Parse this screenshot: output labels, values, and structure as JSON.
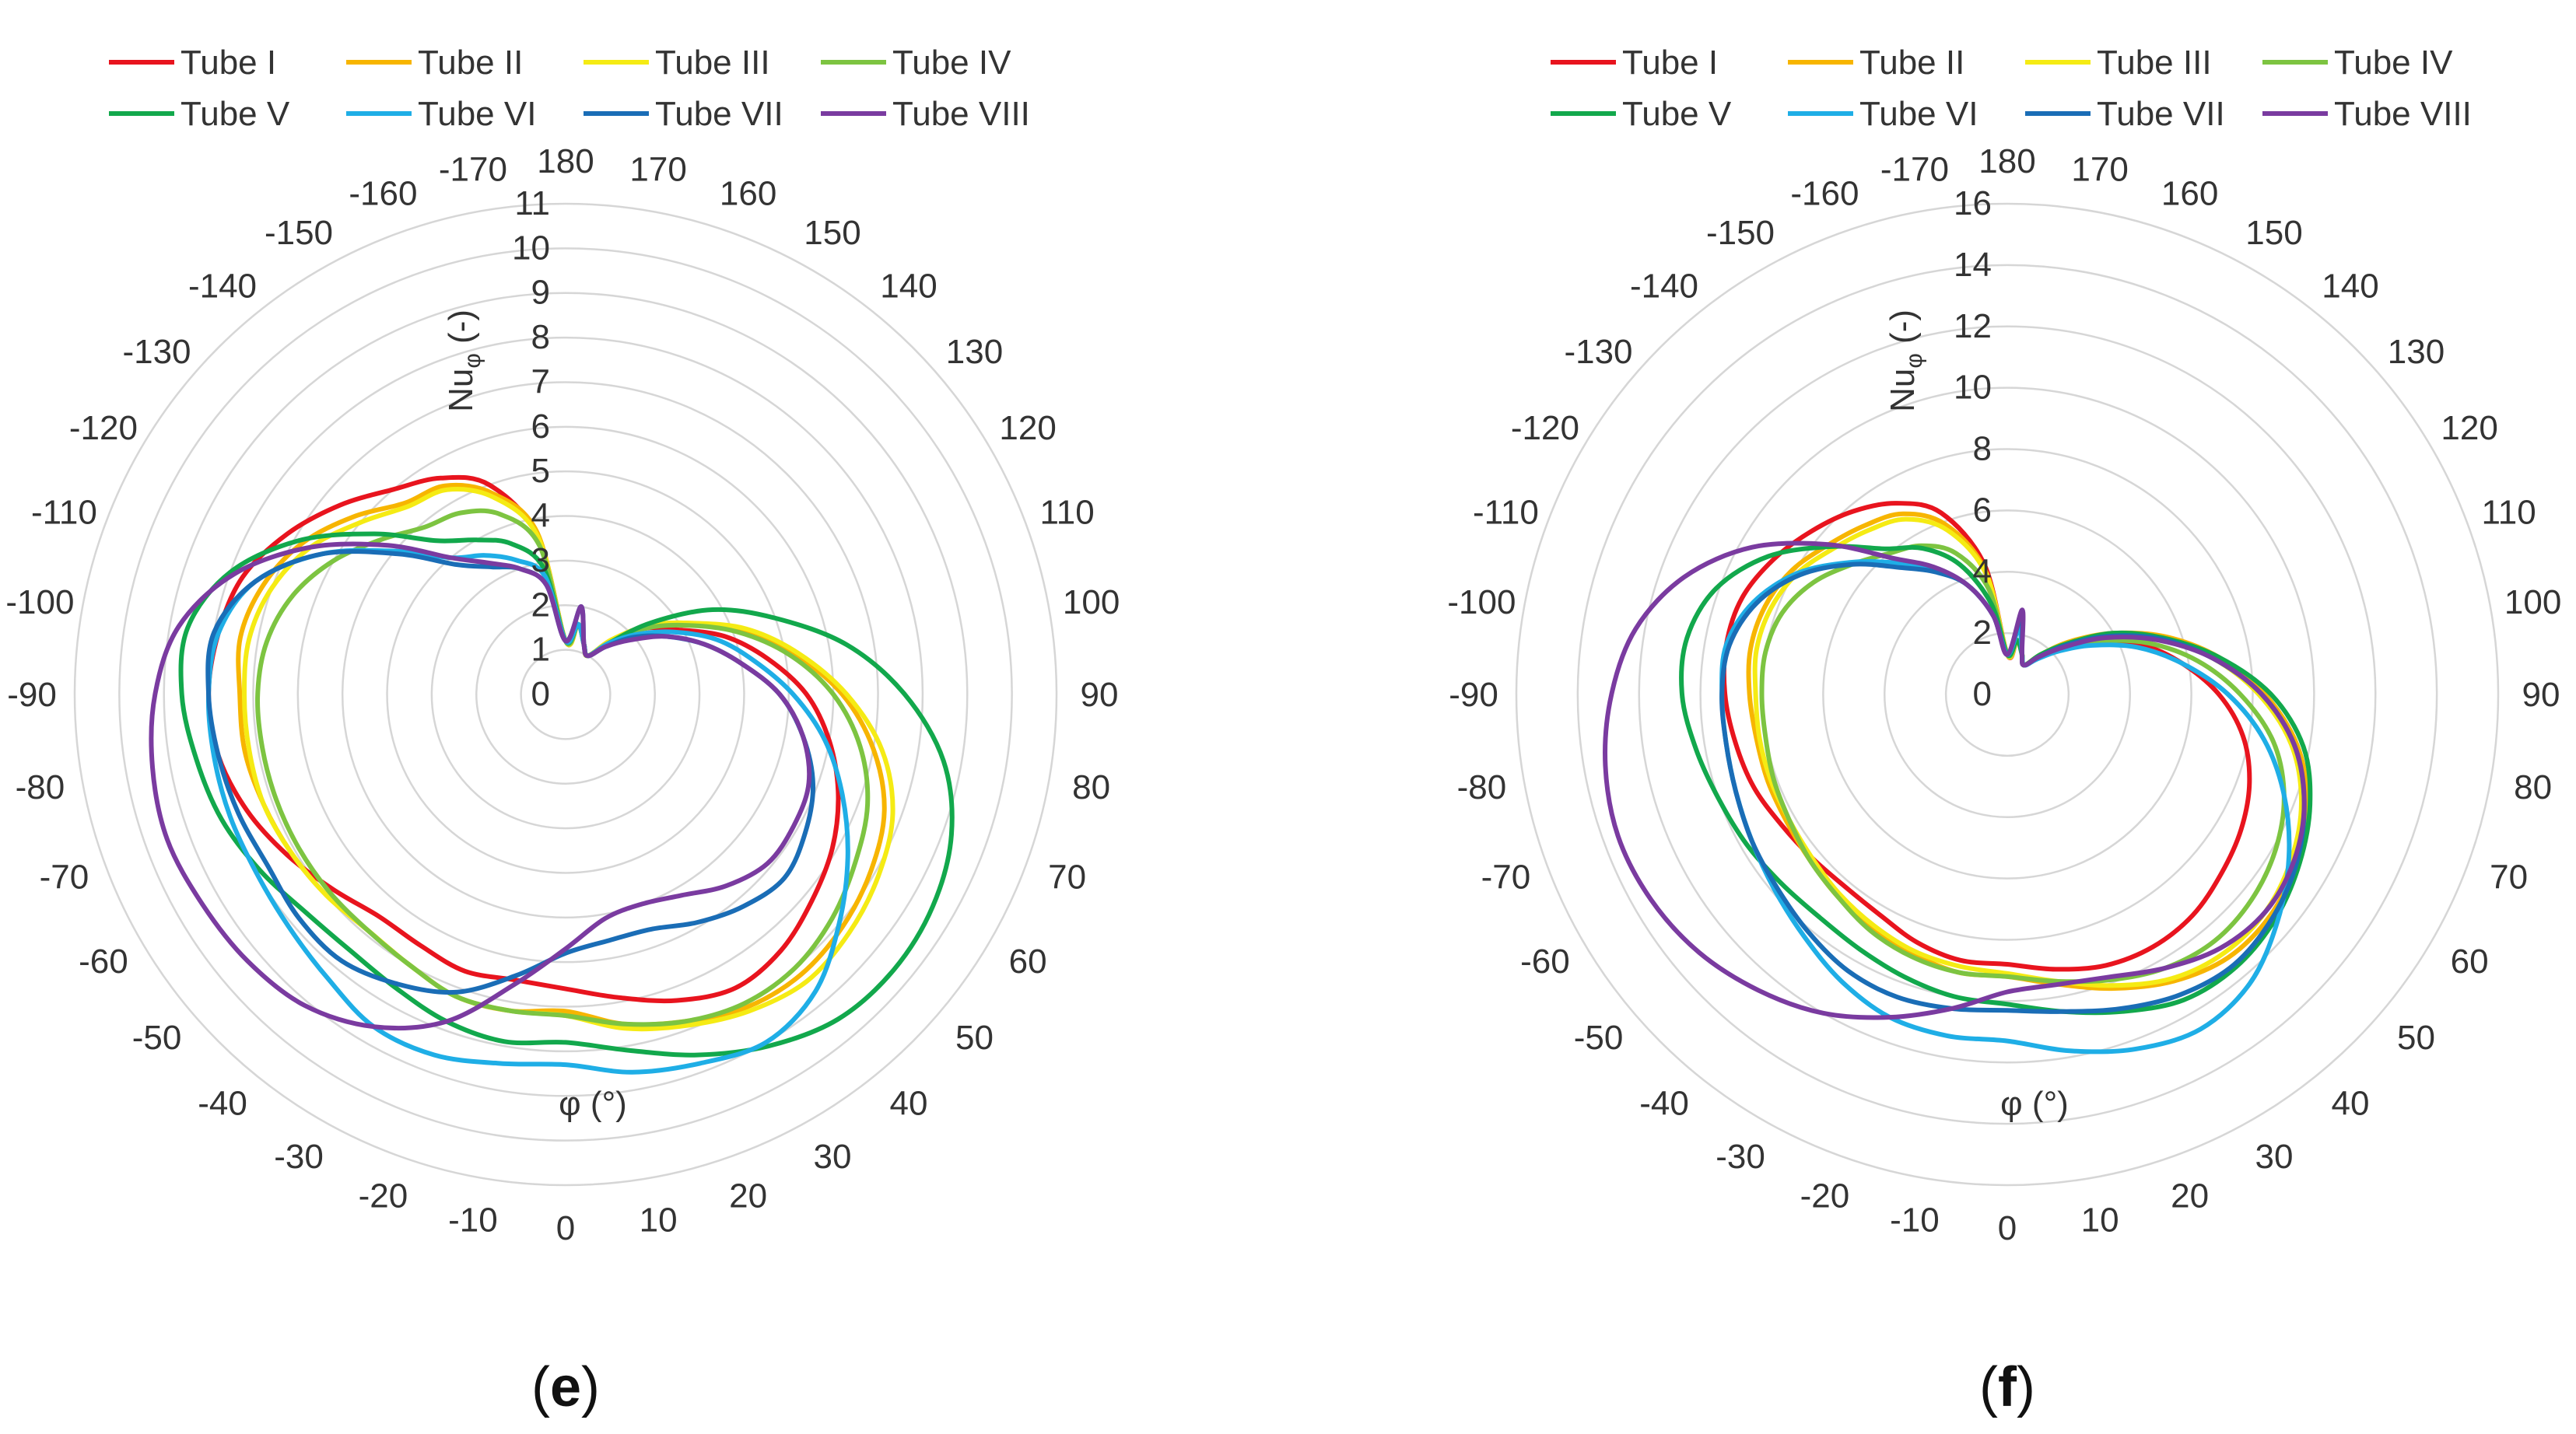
{
  "figure": {
    "legend_entries": [
      "Tube I",
      "Tube II",
      "Tube III",
      "Tube IV",
      "Tube V",
      "Tube VI",
      "Tube VII",
      "Tube VIII"
    ],
    "series_colors": [
      "#e8141e",
      "#f7b500",
      "#f5eb14",
      "#7dc441",
      "#12a84c",
      "#1faee6",
      "#1a6db6",
      "#7a3ba0"
    ]
  },
  "chart_data": [
    {
      "type": "polar-line",
      "panel_label": "(e)",
      "panel_letter": "e",
      "radial_axis_label": "Nu",
      "radial_axis_subscript": "φ",
      "radial_axis_unit": "(-)",
      "angular_axis_label": "φ (°)",
      "r_range": [
        0,
        11
      ],
      "r_ticks": [
        0,
        1,
        2,
        3,
        4,
        5,
        6,
        7,
        8,
        9,
        10,
        11
      ],
      "angle_ticks": [
        0,
        10,
        20,
        30,
        40,
        50,
        60,
        70,
        80,
        90,
        100,
        110,
        120,
        130,
        140,
        150,
        160,
        170,
        180,
        -170,
        -160,
        -150,
        -140,
        -130,
        -120,
        -110,
        -100,
        -90,
        -80,
        -70,
        -60,
        -50,
        -40,
        -30,
        -20,
        -10
      ],
      "angles_deg": [
        -180,
        -170,
        -160,
        -150,
        -140,
        -130,
        -120,
        -110,
        -100,
        -90,
        -80,
        -70,
        -60,
        -50,
        -40,
        -30,
        -20,
        -10,
        0,
        10,
        20,
        30,
        40,
        50,
        60,
        70,
        80,
        90,
        100,
        110,
        120,
        130,
        140,
        150,
        160,
        170,
        180
      ],
      "series": [
        {
          "name": "Tube I",
          "values": [
            1.2,
            3.6,
            5.0,
            5.6,
            6.0,
            6.6,
            7.2,
            7.7,
            7.9,
            8.0,
            7.9,
            7.6,
            7.2,
            6.8,
            6.5,
            6.5,
            6.6,
            6.5,
            6.6,
            6.9,
            7.3,
            7.6,
            7.5,
            7.2,
            6.9,
            6.5,
            6.0,
            5.4,
            4.6,
            3.8,
            2.9,
            2.3,
            1.5,
            1.0,
            1.2,
            1.6,
            1.2
          ]
        },
        {
          "name": "Tube II",
          "values": [
            1.2,
            3.7,
            4.8,
            5.4,
            5.6,
            6.2,
            6.8,
            7.2,
            7.4,
            7.3,
            7.3,
            7.2,
            7.1,
            7.0,
            6.9,
            7.0,
            7.2,
            7.2,
            7.1,
            7.5,
            7.8,
            8.1,
            8.2,
            8.1,
            7.9,
            7.6,
            7.0,
            6.2,
            5.2,
            4.2,
            3.2,
            2.4,
            1.6,
            1.0,
            1.2,
            1.6,
            1.2
          ]
        },
        {
          "name": "Tube III",
          "values": [
            1.2,
            3.6,
            4.7,
            5.3,
            5.5,
            6.0,
            6.6,
            7.0,
            7.2,
            7.2,
            7.2,
            7.2,
            7.1,
            7.0,
            6.9,
            7.0,
            7.2,
            7.2,
            7.2,
            7.6,
            7.9,
            8.2,
            8.4,
            8.3,
            8.1,
            7.8,
            7.2,
            6.3,
            5.3,
            4.3,
            3.2,
            2.4,
            1.6,
            1.0,
            1.2,
            1.6,
            1.2
          ]
        },
        {
          "name": "Tube IV",
          "values": [
            1.2,
            3.4,
            4.3,
            4.7,
            4.9,
            5.4,
            6.0,
            6.5,
            6.8,
            6.9,
            6.9,
            6.9,
            6.9,
            6.9,
            6.9,
            7.0,
            7.2,
            7.2,
            7.2,
            7.5,
            7.8,
            8.0,
            8.0,
            7.8,
            7.5,
            7.2,
            6.7,
            6.0,
            5.1,
            4.1,
            3.1,
            2.3,
            1.5,
            1.0,
            1.2,
            1.6,
            1.2
          ]
        },
        {
          "name": "Tube V",
          "values": [
            1.2,
            2.9,
            3.6,
            4.0,
            4.5,
            5.6,
            6.9,
            8.0,
            8.6,
            8.6,
            8.4,
            8.2,
            7.9,
            7.6,
            7.5,
            7.6,
            7.8,
            7.9,
            7.8,
            8.1,
            8.6,
            9.1,
            9.5,
            9.6,
            9.5,
            9.2,
            8.6,
            7.6,
            6.4,
            5.0,
            3.8,
            2.5,
            1.5,
            1.0,
            1.2,
            1.6,
            1.2
          ]
        },
        {
          "name": "Tube VI",
          "values": [
            1.2,
            2.7,
            3.2,
            3.6,
            4.0,
            5.0,
            6.3,
            7.4,
            7.9,
            8.0,
            8.0,
            8.0,
            8.0,
            8.1,
            8.3,
            8.6,
            8.6,
            8.4,
            8.3,
            8.6,
            8.8,
            9.0,
            8.7,
            8.0,
            7.3,
            6.6,
            5.9,
            5.1,
            4.3,
            3.6,
            2.8,
            2.1,
            1.5,
            1.0,
            1.2,
            1.6,
            1.2
          ]
        },
        {
          "name": "Tube VII",
          "values": [
            1.2,
            2.5,
            3.0,
            3.3,
            3.8,
            4.9,
            6.3,
            7.4,
            8.0,
            8.0,
            7.9,
            7.8,
            7.7,
            7.8,
            7.8,
            7.5,
            7.1,
            6.4,
            5.8,
            5.6,
            5.6,
            5.9,
            6.2,
            6.4,
            6.2,
            5.9,
            5.4,
            4.8,
            4.0,
            3.3,
            2.6,
            2.0,
            1.4,
            1.0,
            1.2,
            2.0,
            1.2
          ]
        },
        {
          "name": "Tube VIII",
          "values": [
            1.2,
            2.5,
            3.0,
            3.4,
            4.0,
            5.2,
            6.6,
            7.9,
            8.8,
            9.2,
            9.4,
            9.5,
            9.4,
            9.3,
            9.1,
            8.6,
            7.8,
            6.6,
            5.7,
            5.1,
            5.0,
            5.2,
            5.6,
            5.9,
            5.9,
            5.8,
            5.4,
            4.8,
            4.0,
            3.3,
            2.6,
            1.9,
            1.4,
            1.0,
            1.2,
            2.0,
            1.2
          ]
        }
      ]
    },
    {
      "type": "polar-line",
      "panel_label": "(f)",
      "panel_letter": "f",
      "radial_axis_label": "Nu",
      "radial_axis_subscript": "φ",
      "radial_axis_unit": "(-)",
      "angular_axis_label": "φ (°)",
      "r_range": [
        0,
        16
      ],
      "r_ticks": [
        0,
        2,
        4,
        6,
        8,
        10,
        12,
        14,
        16
      ],
      "angle_ticks": [
        0,
        10,
        20,
        30,
        40,
        50,
        60,
        70,
        80,
        90,
        100,
        110,
        120,
        130,
        140,
        150,
        160,
        170,
        180,
        -170,
        -160,
        -150,
        -140,
        -130,
        -120,
        -110,
        -100,
        -90,
        -80,
        -70,
        -60,
        -50,
        -40,
        -30,
        -20,
        -10
      ],
      "angles_deg": [
        -180,
        -170,
        -160,
        -150,
        -140,
        -130,
        -120,
        -110,
        -100,
        -90,
        -80,
        -70,
        -60,
        -50,
        -40,
        -30,
        -20,
        -10,
        0,
        10,
        20,
        30,
        40,
        50,
        60,
        70,
        80,
        90,
        100,
        110,
        120,
        130,
        140,
        150,
        160,
        170,
        180
      ],
      "series": [
        {
          "name": "Tube I",
          "values": [
            1.3,
            4.3,
            6.3,
            7.2,
            7.8,
            8.3,
            8.8,
            9.2,
            9.3,
            9.2,
            9.0,
            8.8,
            8.5,
            8.3,
            8.2,
            8.3,
            8.6,
            8.8,
            8.8,
            9.1,
            9.4,
            9.5,
            9.4,
            9.1,
            8.8,
            8.4,
            7.8,
            6.9,
            5.8,
            4.7,
            3.4,
            2.4,
            1.6,
            1.1,
            1.4,
            1.8,
            1.3
          ]
        },
        {
          "name": "Tube II",
          "values": [
            1.3,
            4.1,
            5.9,
            6.8,
            7.2,
            7.6,
            8.1,
            8.4,
            8.5,
            8.4,
            8.3,
            8.3,
            8.3,
            8.4,
            8.6,
            8.8,
            9.0,
            9.2,
            9.2,
            9.6,
            10.2,
            10.8,
            11.2,
            11.2,
            10.9,
            10.4,
            9.6,
            8.4,
            7.0,
            5.5,
            4.0,
            2.7,
            1.7,
            1.1,
            1.4,
            1.8,
            1.3
          ]
        },
        {
          "name": "Tube III",
          "values": [
            1.3,
            4.0,
            5.7,
            6.6,
            7.0,
            7.4,
            7.9,
            8.2,
            8.3,
            8.2,
            8.2,
            8.2,
            8.2,
            8.3,
            8.5,
            8.7,
            8.9,
            9.0,
            9.1,
            9.5,
            10.1,
            10.7,
            11.0,
            11.0,
            10.7,
            10.2,
            9.4,
            8.2,
            6.8,
            5.3,
            3.8,
            2.6,
            1.7,
            1.1,
            1.4,
            1.8,
            1.3
          ]
        },
        {
          "name": "Tube IV",
          "values": [
            1.3,
            3.5,
            4.9,
            5.6,
            6.0,
            6.6,
            7.3,
            7.8,
            8.0,
            8.0,
            8.0,
            8.1,
            8.2,
            8.4,
            8.6,
            8.9,
            9.1,
            9.2,
            9.2,
            9.5,
            9.9,
            10.3,
            10.5,
            10.4,
            10.1,
            9.6,
            8.8,
            7.6,
            6.3,
            4.9,
            3.5,
            2.4,
            1.6,
            1.1,
            1.4,
            1.8,
            1.3
          ]
        },
        {
          "name": "Tube V",
          "values": [
            1.3,
            3.0,
            4.5,
            5.5,
            6.2,
            7.5,
            9.0,
            10.1,
            10.6,
            10.6,
            10.3,
            10.0,
            9.8,
            9.6,
            9.5,
            9.6,
            9.8,
            10.0,
            10.1,
            10.5,
            11.0,
            11.5,
            11.6,
            11.4,
            11.0,
            10.5,
            9.8,
            8.6,
            7.0,
            5.4,
            4.0,
            2.6,
            1.7,
            1.1,
            1.4,
            1.8,
            1.3
          ]
        },
        {
          "name": "Tube VI",
          "values": [
            1.3,
            2.6,
            3.8,
            4.7,
            5.6,
            6.7,
            7.9,
            8.8,
            9.3,
            9.3,
            9.3,
            9.4,
            9.6,
            9.9,
            10.3,
            10.8,
            11.2,
            11.3,
            11.3,
            11.8,
            12.3,
            12.6,
            12.3,
            11.5,
            10.6,
            9.6,
            8.5,
            7.2,
            5.8,
            4.5,
            3.2,
            2.2,
            1.5,
            1.1,
            1.4,
            2.2,
            1.3
          ]
        },
        {
          "name": "Tube VII",
          "values": [
            1.3,
            2.6,
            3.8,
            4.6,
            5.4,
            6.6,
            7.8,
            8.7,
            9.2,
            9.3,
            9.3,
            9.4,
            9.6,
            9.8,
            10.1,
            10.4,
            10.5,
            10.4,
            10.3,
            10.5,
            10.9,
            11.3,
            11.5,
            11.3,
            10.9,
            10.3,
            9.5,
            8.3,
            6.8,
            5.3,
            3.8,
            2.5,
            1.6,
            1.1,
            1.4,
            2.6,
            1.3
          ]
        },
        {
          "name": "Tube VIII",
          "values": [
            1.3,
            2.6,
            3.8,
            4.8,
            5.8,
            7.6,
            9.6,
            11.2,
            12.3,
            12.9,
            13.3,
            13.5,
            13.4,
            13.1,
            12.6,
            12.0,
            11.2,
            10.4,
            9.7,
            9.6,
            9.8,
            10.3,
            10.8,
            11.0,
            10.8,
            10.3,
            9.5,
            8.3,
            6.8,
            5.2,
            3.7,
            2.4,
            1.6,
            1.1,
            1.4,
            2.8,
            1.3
          ]
        }
      ]
    }
  ]
}
